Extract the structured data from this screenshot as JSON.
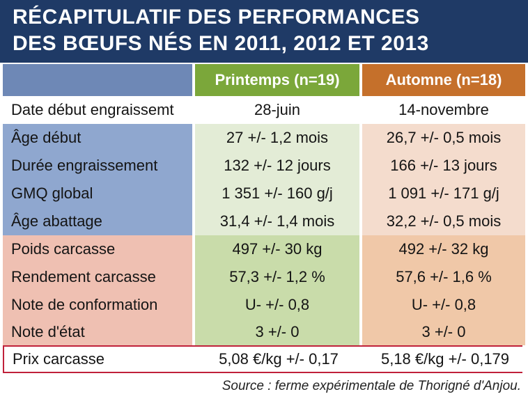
{
  "title": {
    "line1": "RÉCAPITULATIF DES PERFORMANCES",
    "line2": "DES BŒUFS NÉS EN 2011, 2012 ET 2013"
  },
  "header": {
    "col0": "",
    "col1": "Printemps (n=19)",
    "col2": "Automne (n=18)"
  },
  "rows": [
    {
      "label": "Date début engraissemt",
      "printemps": "28-juin",
      "automne": "14-novembre"
    },
    {
      "label": "Âge début",
      "printemps": "27 +/- 1,2 mois",
      "automne": "26,7 +/- 0,5 mois"
    },
    {
      "label": "Durée engraissement",
      "printemps": "132 +/- 12 jours",
      "automne": "166 +/- 13 jours"
    },
    {
      "label": "GMQ global",
      "printemps": "1 351 +/- 160 g/j",
      "automne": "1 091 +/- 171 g/j"
    },
    {
      "label": "Âge abattage",
      "printemps": "31,4 +/- 1,4 mois",
      "automne": "32,2 +/- 0,5 mois"
    },
    {
      "label": "Poids carcasse",
      "printemps": "497 +/- 30 kg",
      "automne": "492 +/- 32 kg"
    },
    {
      "label": "Rendement carcasse",
      "printemps": "57,3 +/- 1,2 %",
      "automne": "57,6 +/- 1,6 %"
    },
    {
      "label": "Note de conformation",
      "printemps": "U- +/- 0,8",
      "automne": "U- +/- 0,8"
    },
    {
      "label": "Note d'état",
      "printemps": "3 +/- 0",
      "automne": "3 +/- 0"
    }
  ],
  "price_row": {
    "label": "Prix carcasse",
    "printemps": "5,08 €/kg +/- 0,17",
    "automne": "5,18 €/kg +/- 0,179"
  },
  "source": "Source : ferme expérimentale de Thorigné d'Anjou."
}
